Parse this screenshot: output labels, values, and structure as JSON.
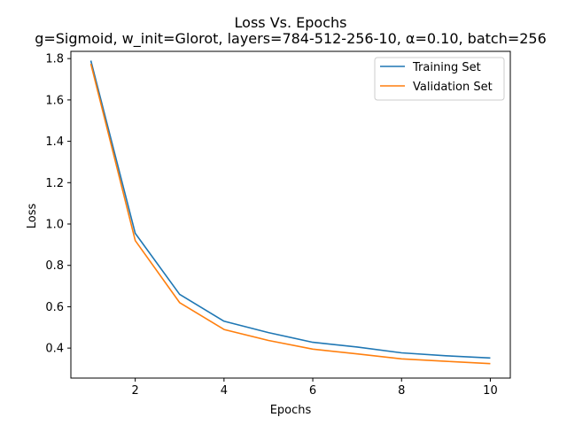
{
  "chart_data": {
    "type": "line",
    "title": "Loss Vs. Epochs",
    "subtitle": "g=Sigmoid, w_init=Glorot, layers=784-512-256-10, α=0.10, batch=256",
    "xlabel": "Epochs",
    "ylabel": "Loss",
    "xlim": [
      0.55,
      10.45
    ],
    "ylim": [
      0.255,
      1.835
    ],
    "xticks": [
      2,
      4,
      6,
      8,
      10
    ],
    "yticks": [
      0.4,
      0.6,
      0.8,
      1.0,
      1.2,
      1.4,
      1.6,
      1.8
    ],
    "xtick_labels": [
      "2",
      "4",
      "6",
      "8",
      "10"
    ],
    "ytick_labels": [
      "0.4",
      "0.6",
      "0.8",
      "1.0",
      "1.2",
      "1.4",
      "1.6",
      "1.8"
    ],
    "grid": false,
    "legend_position": "top-right",
    "x": [
      1,
      2,
      3,
      4,
      5,
      6,
      7,
      8,
      9,
      10
    ],
    "series": [
      {
        "name": "Training Set",
        "color": "#1f77b4",
        "values": [
          1.79,
          0.955,
          0.66,
          0.53,
          0.475,
          0.428,
          0.405,
          0.377,
          0.363,
          0.352
        ]
      },
      {
        "name": "Validation Set",
        "color": "#ff7f0e",
        "values": [
          1.775,
          0.92,
          0.62,
          0.49,
          0.437,
          0.395,
          0.372,
          0.348,
          0.336,
          0.325
        ]
      }
    ]
  }
}
